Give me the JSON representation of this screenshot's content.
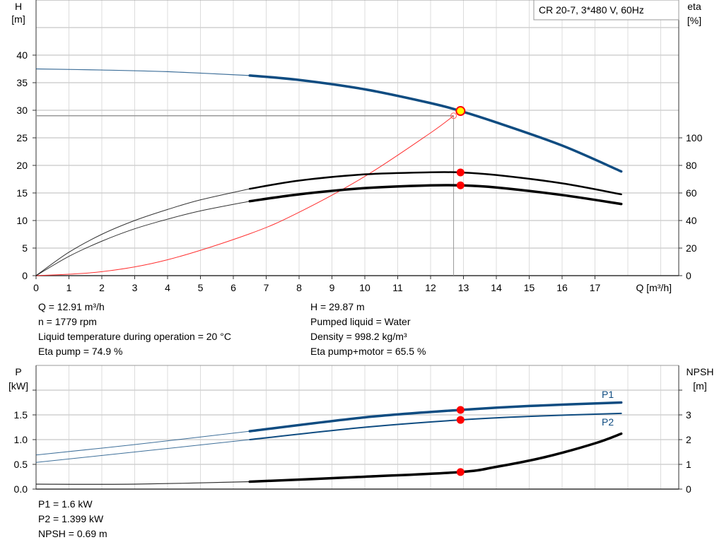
{
  "chart_data": [
    {
      "type": "line",
      "legend_box": "CR 20-7, 3*480 V, 60Hz",
      "ylabel_left": "H",
      "yunit_left": "[m]",
      "ylabel_right": "eta",
      "yunit_right": "[%]",
      "xlabel": "Q [m³/h]",
      "xlim": [
        0,
        19.55
      ],
      "ylim_left": [
        0,
        50
      ],
      "ylim_right": [
        0,
        200
      ],
      "xticks": [
        0,
        1,
        2,
        3,
        4,
        5,
        6,
        7,
        8,
        9,
        10,
        11,
        12,
        13,
        14,
        15,
        16,
        17
      ],
      "yticks_left": [
        0,
        5,
        10,
        15,
        20,
        25,
        30,
        35,
        40
      ],
      "yticks_right": [
        0,
        20,
        40,
        60,
        80,
        100
      ],
      "grid": true,
      "series": [
        {
          "key": "H",
          "axis": "left",
          "color": "#0f4c81",
          "points": [
            [
              0,
              37.5
            ],
            [
              2,
              37.3
            ],
            [
              4,
              37.0
            ],
            [
              6.5,
              36.3
            ],
            [
              8,
              35.5
            ],
            [
              10,
              33.8
            ],
            [
              12,
              31.3
            ],
            [
              12.91,
              29.87
            ],
            [
              14,
              27.8
            ],
            [
              16,
              23.6
            ],
            [
              17.8,
              18.9
            ]
          ]
        },
        {
          "key": "eta_pump",
          "axis": "right",
          "color": "#000000",
          "points": [
            [
              0,
              0
            ],
            [
              1,
              17
            ],
            [
              2,
              30
            ],
            [
              3,
              40
            ],
            [
              4,
              48
            ],
            [
              5,
              55
            ],
            [
              6.5,
              63
            ],
            [
              8,
              69
            ],
            [
              10,
              73.5
            ],
            [
              12,
              75
            ],
            [
              12.91,
              74.9
            ],
            [
              14,
              73
            ],
            [
              16,
              67
            ],
            [
              17.8,
              59
            ]
          ]
        },
        {
          "key": "eta_pump_motor",
          "axis": "right",
          "color": "#000000",
          "points": [
            [
              0,
              0
            ],
            [
              1,
              14
            ],
            [
              2,
              25
            ],
            [
              3,
              34
            ],
            [
              4,
              41
            ],
            [
              5,
              47
            ],
            [
              6.5,
              54
            ],
            [
              8,
              59
            ],
            [
              10,
              63.5
            ],
            [
              12,
              65.5
            ],
            [
              12.91,
              65.5
            ],
            [
              14,
              64
            ],
            [
              16,
              58.5
            ],
            [
              17.8,
              52
            ]
          ]
        },
        {
          "key": "system",
          "axis": "left",
          "color": "#ff3030",
          "points": [
            [
              0,
              0
            ],
            [
              2,
              0.72
            ],
            [
              4,
              2.88
            ],
            [
              6.5,
              7.6
            ],
            [
              8,
              11.5
            ],
            [
              10,
              18
            ],
            [
              12,
              25.9
            ],
            [
              12.7,
              29
            ]
          ]
        }
      ],
      "duty_point": {
        "Q": 12.91,
        "H": 29.87
      },
      "system_point": {
        "Q": 12.7,
        "H": 29
      }
    },
    {
      "type": "line",
      "ylabel_left": "P",
      "yunit_left": "[kW]",
      "ylabel_right": "NPSH",
      "yunit_right": "[m]",
      "xlim": [
        0,
        19.55
      ],
      "ylim_left": [
        0,
        2.5
      ],
      "ylim_right": [
        0,
        5
      ],
      "yticks_left": [
        "0.0",
        "0.5",
        "1.0",
        "1.5"
      ],
      "yticks_right": [
        0,
        1,
        2,
        3
      ],
      "grid": true,
      "series": [
        {
          "key": "P1",
          "name": "P1",
          "axis": "left",
          "color": "#0f4c81",
          "points": [
            [
              0,
              0.69
            ],
            [
              3,
              0.9
            ],
            [
              6.5,
              1.17
            ],
            [
              10,
              1.45
            ],
            [
              12.91,
              1.6
            ],
            [
              15,
              1.68
            ],
            [
              17.8,
              1.75
            ]
          ]
        },
        {
          "key": "P2",
          "name": "P2",
          "axis": "left",
          "color": "#0f4c81",
          "points": [
            [
              0,
              0.54
            ],
            [
              3,
              0.75
            ],
            [
              6.5,
              1.0
            ],
            [
              10,
              1.25
            ],
            [
              12.91,
              1.399
            ],
            [
              15,
              1.47
            ],
            [
              17.8,
              1.53
            ]
          ]
        },
        {
          "key": "NPSH",
          "axis": "right",
          "color": "#000000",
          "points": [
            [
              0,
              0.2
            ],
            [
              3,
              0.2
            ],
            [
              6.5,
              0.3
            ],
            [
              10,
              0.5
            ],
            [
              12.91,
              0.69
            ],
            [
              14,
              0.9
            ],
            [
              15.5,
              1.3
            ],
            [
              17,
              1.85
            ],
            [
              17.8,
              2.24
            ]
          ]
        }
      ]
    }
  ],
  "readout_top_left": [
    "Q = 12.91 m³/h",
    "n = 1779 rpm",
    "Liquid temperature during operation = 20 °C",
    "Eta pump = 74.9 %"
  ],
  "readout_top_right": [
    "H = 29.87 m",
    "Pumped liquid = Water",
    "Density = 998.2 kg/m³",
    "Eta pump+motor = 65.5 %"
  ],
  "readout_bottom": [
    "P1 = 1.6 kW",
    "P2 = 1.399 kW",
    "NPSH = 0.69 m"
  ]
}
